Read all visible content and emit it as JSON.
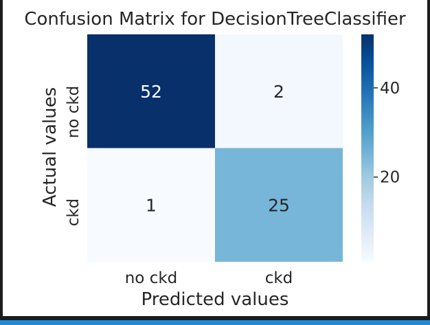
{
  "chart_data": {
    "type": "heatmap",
    "title": "Confusion Matrix for DecisionTreeClassifier",
    "xlabel": "Predicted values",
    "ylabel": "Actual values",
    "x_categories": [
      "no ckd",
      "ckd"
    ],
    "y_categories": [
      "no ckd",
      "ckd"
    ],
    "values": [
      [
        52,
        2
      ],
      [
        1,
        25
      ]
    ],
    "colormap": "Blues",
    "colorbar_ticks": [
      20,
      40
    ],
    "colorbar_range": [
      1,
      52
    ],
    "colors": {
      "dark": "#08306b",
      "light": "#f7fbff",
      "annotation_dark_cell": "#ffffff",
      "annotation_light_cell": "#262626"
    }
  }
}
